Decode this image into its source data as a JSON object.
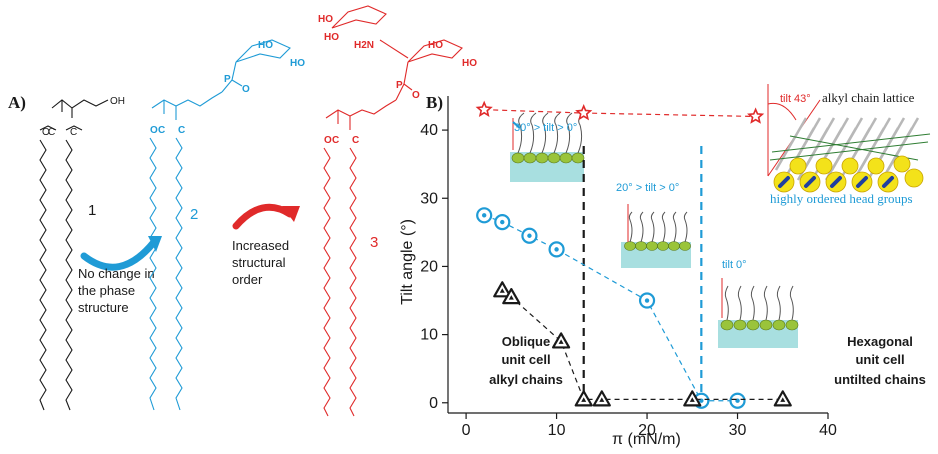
{
  "panel_a": {
    "label": "A)",
    "oh_label": "OH",
    "ester_label": "C",
    "o_label": "O",
    "p_label": "P",
    "h2n_label": "H2N",
    "ho_label": "HO",
    "compound_1": "1",
    "compound_2": "2",
    "compound_3": "3",
    "arrow1_text": [
      "No change in",
      "the phase",
      "structure"
    ],
    "arrow2_text": [
      "Increased",
      "structural",
      "order"
    ]
  },
  "panel_b": {
    "label": "B)"
  },
  "colors": {
    "black": "#1a1a1a",
    "blue": "#1f9bd6",
    "red": "#e02a2a",
    "teal": "#a8dfe0",
    "green": "#9ac43a"
  },
  "chart_data": {
    "type": "scatter",
    "xlabel": "π (mN/m)",
    "ylabel": "Tilt angle (°)",
    "xlim": [
      -2,
      40
    ],
    "ylim": [
      -1.5,
      45
    ],
    "xticks": [
      0,
      10,
      20,
      30,
      40
    ],
    "yticks": [
      0,
      10,
      20,
      30,
      40
    ],
    "series": [
      {
        "marker": "star",
        "color": "#e02a2a",
        "x": [
          2,
          13,
          32
        ],
        "y": [
          43,
          42.5,
          42
        ]
      },
      {
        "marker": "circle",
        "color": "#1f9bd6",
        "x": [
          2,
          4,
          7,
          10,
          20,
          26,
          30
        ],
        "y": [
          27.5,
          26.5,
          24.5,
          22.5,
          15,
          0.3,
          0.3
        ]
      },
      {
        "marker": "triangle",
        "color": "#1a1a1a",
        "x": [
          4,
          5,
          10.5,
          13,
          15,
          25,
          35
        ],
        "y": [
          16.5,
          15.5,
          9,
          0.5,
          0.5,
          0.5,
          0.5
        ]
      }
    ],
    "vlines": [
      {
        "x": 13,
        "color": "#1a1a1a"
      },
      {
        "x": 26,
        "color": "#1f9bd6"
      }
    ],
    "annotations": {
      "tilt1": "30° > tilt > 0°",
      "tilt2": "20° > tilt > 0°",
      "tilt3": "tilt 0°",
      "tilt43": "tilt 43°",
      "lattice": "alkyl chain lattice",
      "headgroups": "highly ordered head groups",
      "oblique": [
        "Oblique",
        "unit cell",
        "alkyl chains"
      ],
      "hexagonal": [
        "Hexagonal",
        "unit cell",
        "untilted chains"
      ]
    }
  }
}
